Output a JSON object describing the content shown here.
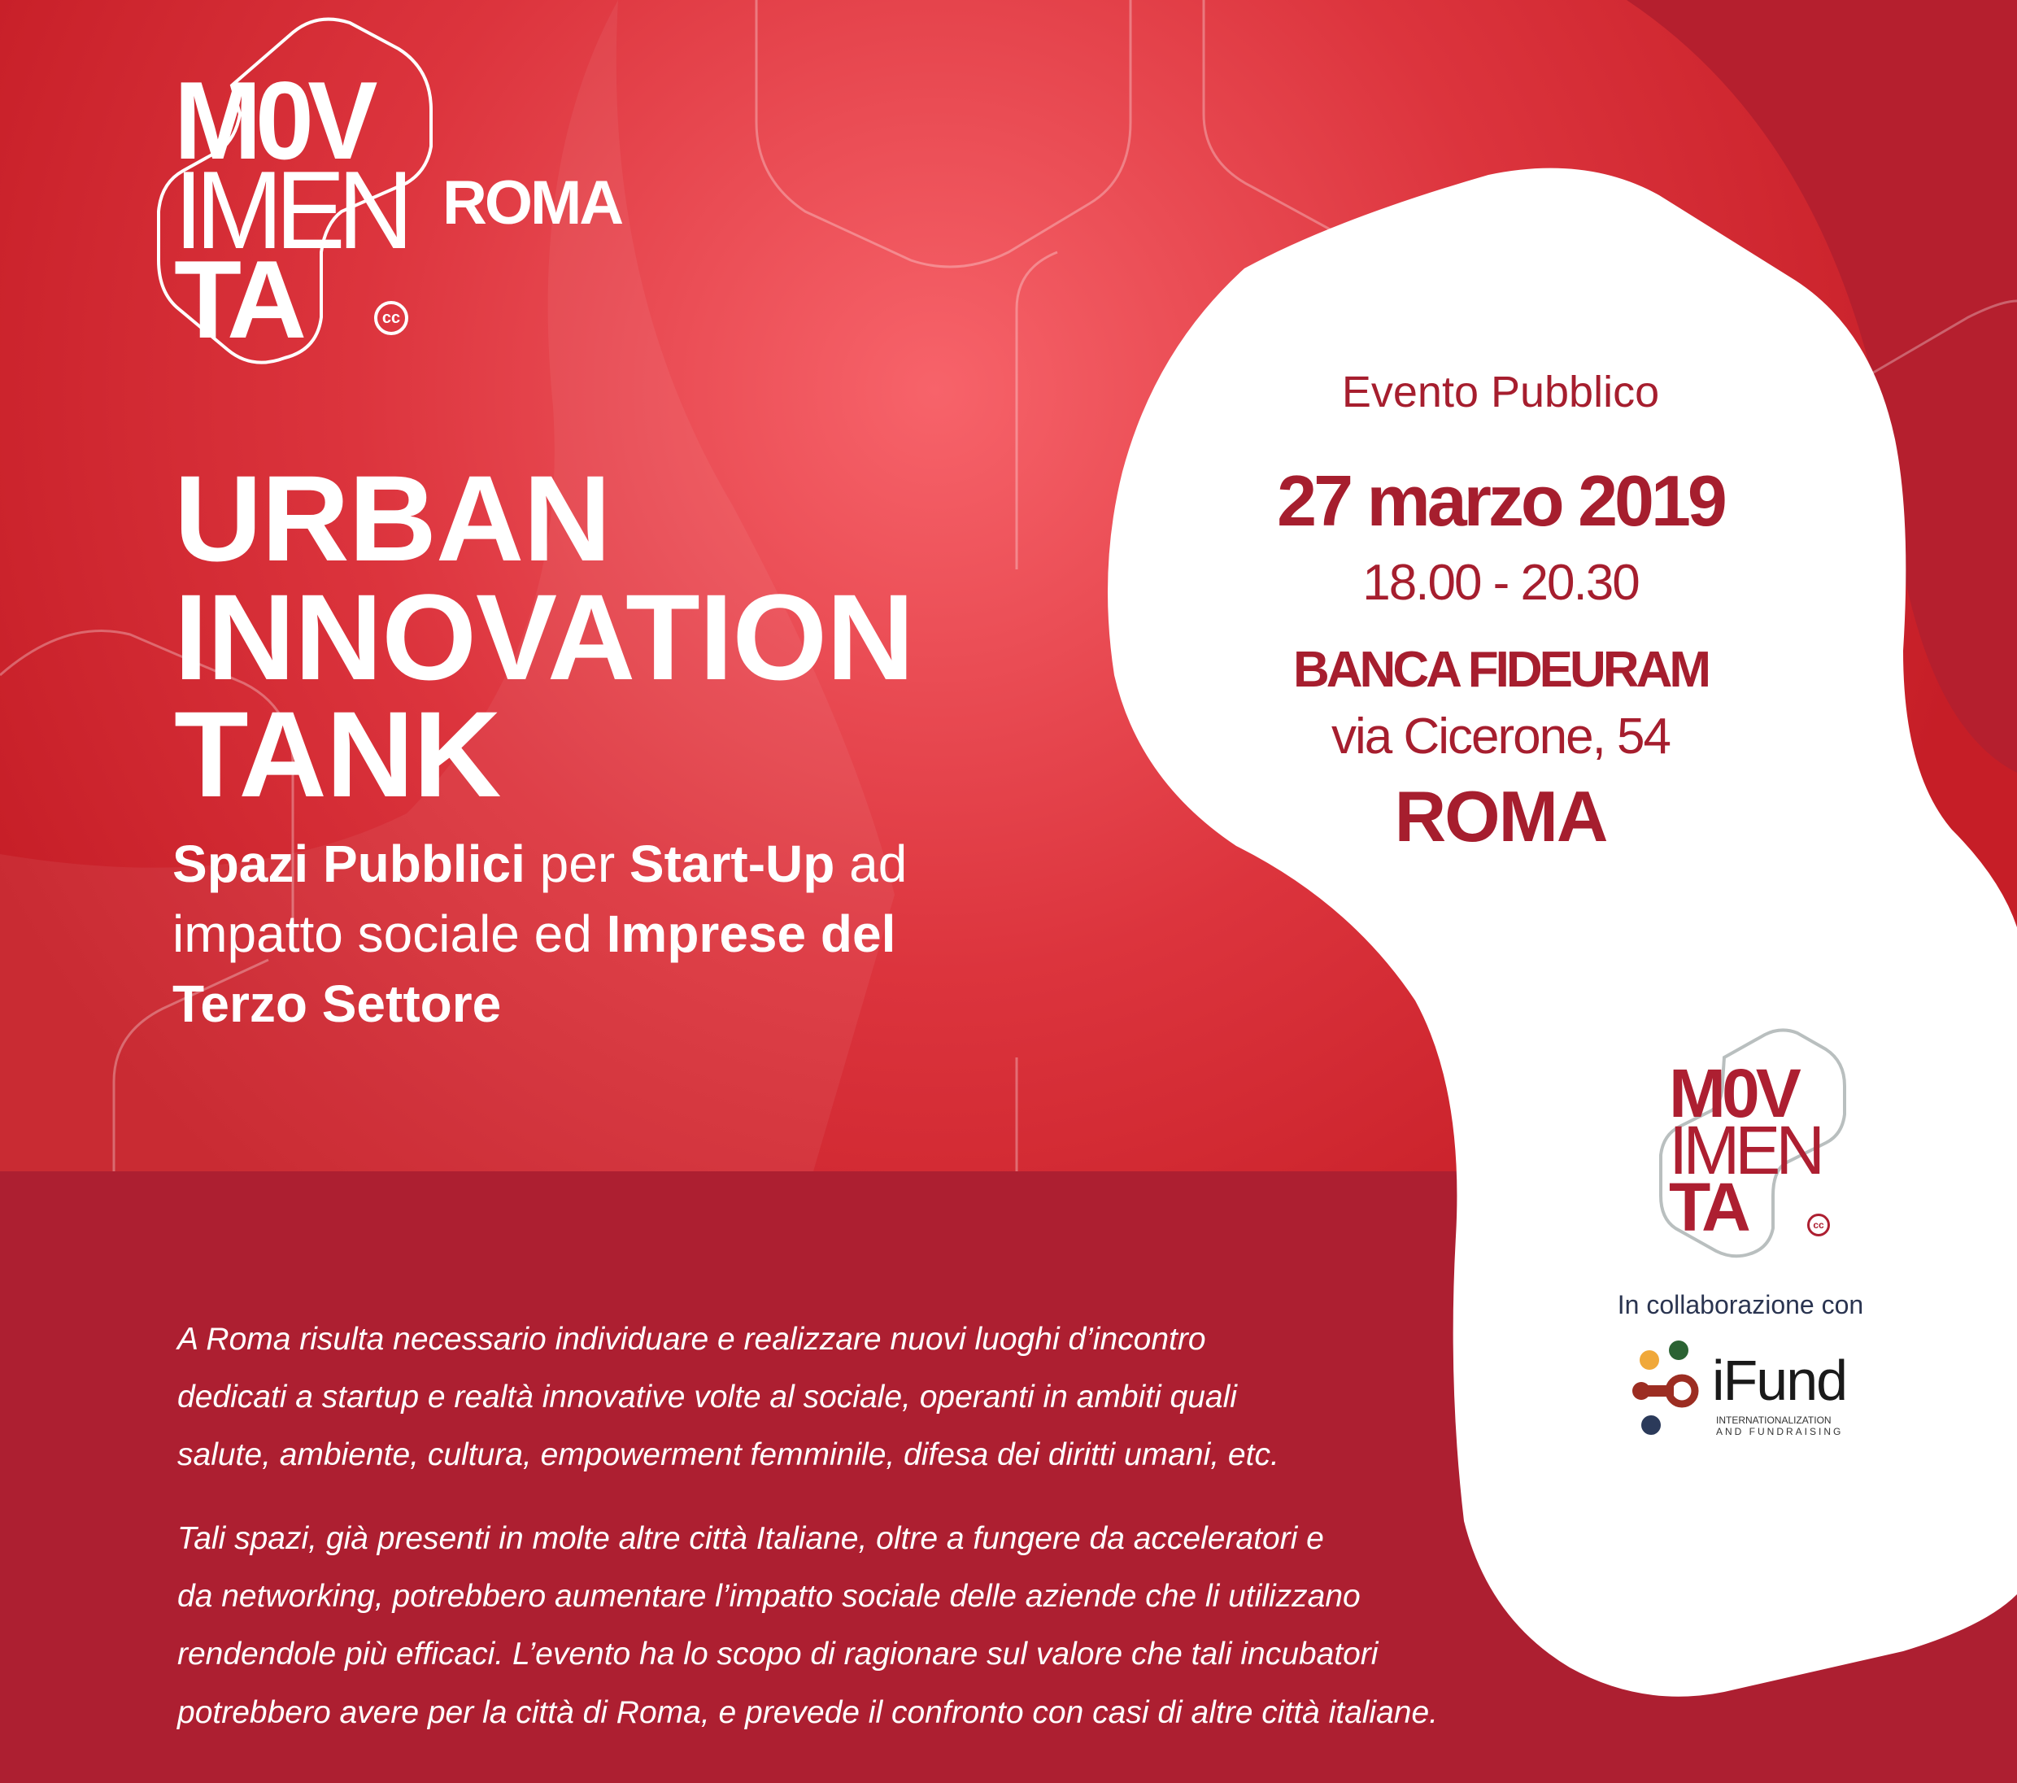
{
  "logo": {
    "text": "MOVIMENTA",
    "lines": [
      "M0V",
      "IMEN",
      "TA"
    ],
    "cc": "cc",
    "city": "ROMA"
  },
  "title": {
    "lines": [
      "URBAN",
      "INNOVATION",
      "TANK"
    ]
  },
  "subtitle": {
    "line1": [
      {
        "t": "Spazi Pubblici",
        "b": true
      },
      {
        "t": " per ",
        "b": false
      },
      {
        "t": "Start-Up",
        "b": true
      },
      {
        "t": " ad",
        "b": false
      }
    ],
    "line2": [
      {
        "t": "impatto sociale ed ",
        "b": false
      },
      {
        "t": "Imprese del",
        "b": true
      }
    ],
    "line3": [
      {
        "t": "Terzo Settore",
        "b": true
      }
    ]
  },
  "event": {
    "type": "Evento Pubblico",
    "date": "27 marzo 2019",
    "time": "18.00 - 20.30",
    "venue": "BANCA FIDEURAM",
    "address": "via Cicerone, 54",
    "city": "ROMA"
  },
  "partner": {
    "collab_label": "In collaborazione con",
    "ifund_name": "iFund",
    "ifund_tagline1": "INTERNATIONALIZATION",
    "ifund_tagline2": "AND FUNDRAISING"
  },
  "description": {
    "p1": [
      "A Roma risulta necessario individuare e realizzare nuovi luoghi d’incontro",
      "dedicati a startup e realtà innovative volte al sociale, operanti in ambiti quali",
      "salute, ambiente, cultura, empowerment femminile, difesa dei diritti umani, etc."
    ],
    "p2": [
      "Tali spazi, già presenti in molte altre città Italiane, oltre a fungere da acceleratori e",
      "da networking, potrebbero aumentare l’impatto sociale delle aziende che li utilizzano",
      "rendendole più efficaci. L’evento ha lo scopo di ragionare sul valore che tali incubatori",
      "potrebbero avere per la città di Roma, e prevede il confronto con casi di altre città italiane."
    ]
  },
  "colors": {
    "primary_red": "#c8202a",
    "dark_red": "#ad1f31",
    "text_red": "#a61e2e",
    "white": "#ffffff"
  }
}
